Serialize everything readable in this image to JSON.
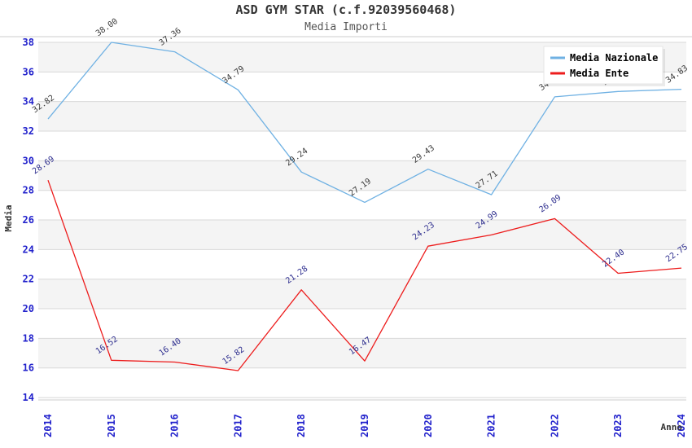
{
  "title": "ASD GYM STAR (c.f.92039560468)",
  "subtitle": "Media Importi",
  "legend": {
    "items": [
      {
        "label": "Media Nazionale",
        "color": "#6fb1e3"
      },
      {
        "label": "Media Ente",
        "color": "#ed1c1c"
      }
    ]
  },
  "chart_data": {
    "type": "line",
    "x": [
      2014,
      2015,
      2016,
      2017,
      2018,
      2019,
      2020,
      2021,
      2022,
      2023,
      2024
    ],
    "series": [
      {
        "name": "Media Nazionale",
        "color": "#6fb1e3",
        "label_color": "#3a3a3a",
        "values": [
          32.82,
          38.0,
          37.36,
          34.79,
          29.24,
          27.19,
          29.43,
          27.71,
          34.32,
          34.68,
          34.83
        ],
        "point_labels": [
          "32.82",
          "38.00",
          "37.36",
          "34.79",
          "29.24",
          "27.19",
          "29.43",
          "27.71",
          "34.32",
          "34.68",
          "34.83"
        ],
        "labels_occluded_by_legend": [
          2022,
          2023
        ]
      },
      {
        "name": "Media Ente",
        "color": "#ed1c1c",
        "label_color": "#2d2d8e",
        "values": [
          28.69,
          16.52,
          16.4,
          15.82,
          21.28,
          16.47,
          24.23,
          24.99,
          26.09,
          22.4,
          22.75
        ],
        "point_labels": [
          "28.69",
          "16.52",
          "16.40",
          "15.82",
          "21.28",
          "16.47",
          "24.23",
          "24.99",
          "26.09",
          "22.40",
          "22.75"
        ],
        "labels_occluded_by_legend": []
      }
    ],
    "xlabel": "Anno",
    "ylabel": "Media",
    "ylim": [
      14,
      38
    ],
    "ytick_step": 2,
    "yticks": [
      14,
      16,
      18,
      20,
      22,
      24,
      26,
      28,
      30,
      32,
      34,
      36,
      38
    ],
    "tick_color": "#2222cc",
    "grid": "horizontal gridlines with alternating light-gray bands",
    "legend_position": "top-right"
  }
}
